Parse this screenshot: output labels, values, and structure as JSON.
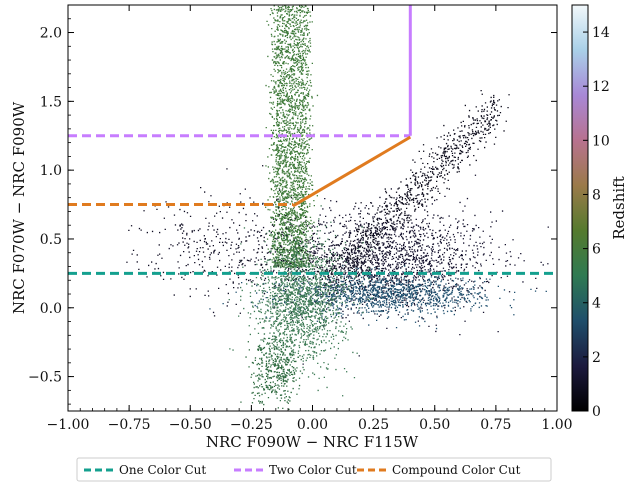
{
  "chart_data": {
    "type": "scatter",
    "xlabel": "NRC F090W − NRC F115W",
    "ylabel": "NRC F070W − NRC F090W",
    "xlim": [
      -1.0,
      1.0
    ],
    "ylim": [
      -0.75,
      2.2
    ],
    "xticks": [
      -1.0,
      -0.75,
      -0.5,
      -0.25,
      0.0,
      0.25,
      0.5,
      0.75,
      1.0
    ],
    "xtick_labels": [
      "−1.00",
      "−0.75",
      "−0.50",
      "−0.25",
      "0.00",
      "0.25",
      "0.50",
      "0.75",
      "1.00"
    ],
    "yticks": [
      -0.5,
      0.0,
      0.5,
      1.0,
      1.5,
      2.0
    ],
    "ytick_labels": [
      "−0.5",
      "0.0",
      "0.5",
      "1.0",
      "1.5",
      "2.0"
    ],
    "grid": false,
    "colorbar": {
      "label": "Redshift",
      "range": [
        0,
        15
      ],
      "ticks": [
        0,
        2,
        4,
        6,
        8,
        10,
        12,
        14
      ],
      "tick_labels": [
        "0",
        "2",
        "4",
        "6",
        "8",
        "10",
        "12",
        "14"
      ],
      "colormap_stops": [
        "#000000",
        "#1c1a3e",
        "#1f4e6b",
        "#2f7a52",
        "#557a2e",
        "#9b7a4a",
        "#b8728f",
        "#a888d6",
        "#a9d0e8",
        "#f2f8fb"
      ]
    },
    "cut_lines": [
      {
        "name": "One Color Cut",
        "color": "#14a08f",
        "style": "dashed",
        "points": [
          [
            -1.0,
            0.25
          ],
          [
            1.0,
            0.25
          ]
        ]
      },
      {
        "name": "Two Color Cut",
        "color": "#c77dff",
        "style": "solid",
        "points": [
          [
            0.4,
            2.2
          ],
          [
            0.4,
            1.25
          ]
        ]
      },
      {
        "name": "Two Color Cut",
        "color": "#c77dff",
        "style": "dashed",
        "points": [
          [
            -1.0,
            1.25
          ],
          [
            0.4,
            1.25
          ]
        ]
      },
      {
        "name": "Compound Color Cut",
        "color": "#e07b1f",
        "style": "solid",
        "points": [
          [
            -0.08,
            0.74
          ],
          [
            0.4,
            1.24
          ]
        ]
      },
      {
        "name": "Compound Color Cut",
        "color": "#e07b1f",
        "style": "dashed",
        "points": [
          [
            -1.0,
            0.75
          ],
          [
            -0.08,
            0.75
          ]
        ]
      }
    ],
    "point_clouds": [
      {
        "name": "low-z cloud",
        "color": "#15122e",
        "n": 1800,
        "center": [
          0.3,
          0.35
        ],
        "spread": [
          0.22,
          0.18
        ]
      },
      {
        "name": "diagonal sequence",
        "color": "#0b0a1a",
        "n": 900,
        "from": [
          0.05,
          0.2
        ],
        "to": [
          0.75,
          1.45
        ],
        "width": 0.08
      },
      {
        "name": "lower blue band",
        "color": "#1f4f6e",
        "n": 1200,
        "center": [
          0.3,
          0.1
        ],
        "spread": [
          0.2,
          0.07
        ]
      },
      {
        "name": "high-z vertical stripe",
        "color": "#3f7a3a",
        "n": 2600,
        "xrange": [
          -0.16,
          -0.02
        ],
        "yrange": [
          0.3,
          2.2
        ]
      },
      {
        "name": "mid-z green base",
        "color": "#3d7a55",
        "n": 1600,
        "center": [
          -0.05,
          0.05
        ],
        "spread": [
          0.09,
          0.22
        ]
      },
      {
        "name": "bottom tail",
        "color": "#2e6a3f",
        "n": 400,
        "center": [
          -0.15,
          -0.45
        ],
        "spread": [
          0.05,
          0.12
        ]
      },
      {
        "name": "left stragglers",
        "color": "#0f0d22",
        "n": 350,
        "center": [
          -0.35,
          0.45
        ],
        "spread": [
          0.18,
          0.18
        ]
      }
    ],
    "legend": {
      "placement": "bottom",
      "entries": [
        {
          "label": "One Color Cut",
          "color": "#14a08f"
        },
        {
          "label": "Two Color Cut",
          "color": "#c77dff"
        },
        {
          "label": "Compound Color Cut",
          "color": "#e07b1f"
        }
      ]
    }
  }
}
